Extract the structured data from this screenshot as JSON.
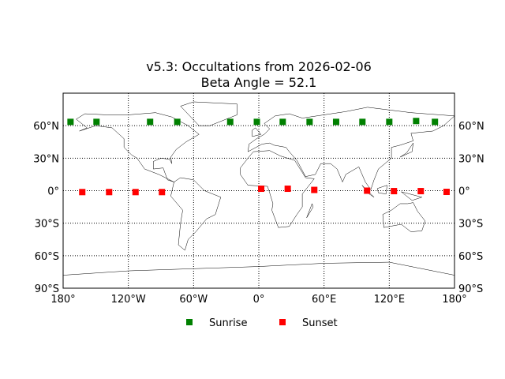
{
  "chart_data": {
    "type": "scatter",
    "title": "v5.3: Occultations from 2026-02-06",
    "subtitle": "Beta Angle = 52.1",
    "xlabel": "",
    "ylabel": "",
    "xlim": [
      -180,
      180
    ],
    "ylim": [
      -90,
      90
    ],
    "grid": true,
    "projection": "cylindrical map with coastlines",
    "legend_placement": "bottom-center",
    "x_tick_labels": [
      "180°",
      "120°W",
      "60°W",
      "0°",
      "60°E",
      "120°E",
      "180°"
    ],
    "x_ticks": [
      -180,
      -120,
      -60,
      0,
      60,
      120,
      180
    ],
    "y_tick_labels": [
      "90°S",
      "60°S",
      "30°S",
      "0°",
      "30°N",
      "60°N"
    ],
    "y_ticks": [
      -90,
      -60,
      -30,
      0,
      30,
      60
    ],
    "series": [
      {
        "name": "Sunrise",
        "color": "#008000",
        "marker": "square",
        "lon": [
          -173.2,
          -149.3,
          -100,
          -75,
          -26.3,
          -1.8,
          22,
          46.7,
          71.1,
          95.3,
          120,
          144.7,
          162
        ],
        "lat": [
          63.5,
          63.5,
          63.5,
          63.5,
          63.5,
          63.5,
          63.5,
          63.5,
          63.5,
          63.5,
          63.5,
          64.3,
          63.5
        ]
      },
      {
        "name": "Sunset",
        "color": "#ff0000",
        "marker": "square",
        "lon": [
          -162.4,
          -137.7,
          -113.4,
          -89.1,
          2.2,
          26.6,
          51,
          99.6,
          124.3,
          149,
          172.7
        ],
        "lat": [
          -1.3,
          -1.3,
          -1.3,
          -1.3,
          1.8,
          1.8,
          0.7,
          0,
          -0.4,
          -0.4,
          -1.1
        ]
      }
    ]
  }
}
